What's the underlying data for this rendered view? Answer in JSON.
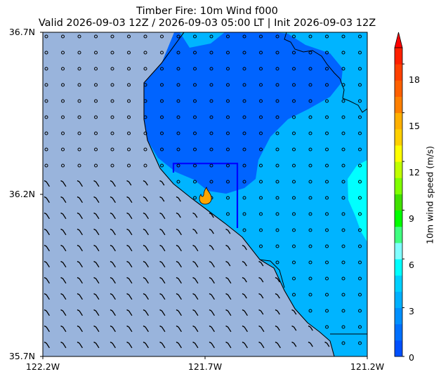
{
  "title": {
    "line1": "Timber Fire: 10m Wind f000",
    "line2": "Valid 2026-09-03 12Z / 2026-09-03 05:00 LT | Init 2026-09-03 12Z"
  },
  "axes": {
    "lat_labels": [
      "36.7N",
      "36.2N",
      "35.7N"
    ],
    "lon_labels": [
      "122.2W",
      "121.7W",
      "121.2W"
    ]
  },
  "colorbar": {
    "label": "10m wind speed (m/s)",
    "ticks": [
      "0",
      "3",
      "6",
      "9",
      "12",
      "15",
      "18"
    ],
    "levels": [
      0,
      1,
      2,
      3,
      4,
      5,
      6,
      7,
      8,
      9,
      10,
      11,
      12,
      13,
      14,
      15,
      16,
      17,
      18,
      19
    ],
    "colors": [
      "#0050ff",
      "#0070ff",
      "#0090ff",
      "#00b0ff",
      "#00d0ff",
      "#00ffff",
      "#80ffff",
      "#40ff80",
      "#00ff00",
      "#40e000",
      "#80ff00",
      "#c0ff00",
      "#ffff00",
      "#ffd000",
      "#ffb000",
      "#ff8000",
      "#ff6000",
      "#ff4000",
      "#ff2000"
    ],
    "extend_color": "#ff0000"
  },
  "map": {
    "ocean_color": "#99b4dc",
    "wind_zone_colors": [
      "#0064ff",
      "#00b4ff",
      "#00ffff"
    ],
    "fire_marker": "flame-icon",
    "fire_color": "#ffa500"
  }
}
